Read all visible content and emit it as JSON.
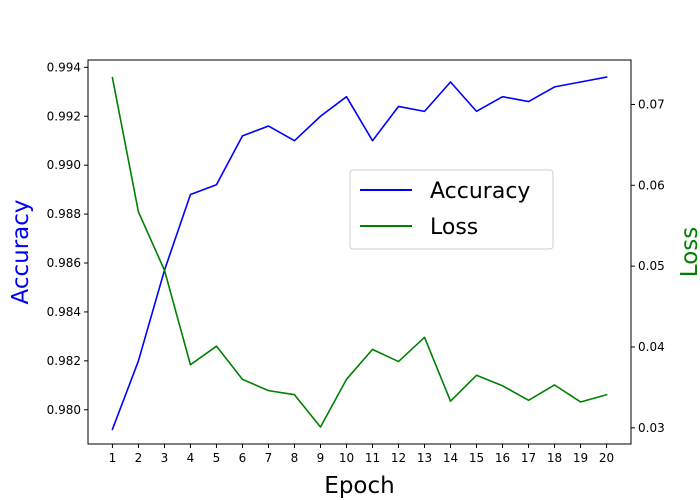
{
  "chart_data": {
    "type": "line",
    "title": "",
    "xlabel": "Epoch",
    "ylabel_left": "Accuracy",
    "ylabel_right": "Loss",
    "x": [
      1,
      2,
      3,
      4,
      5,
      6,
      7,
      8,
      9,
      10,
      11,
      12,
      13,
      14,
      15,
      16,
      17,
      18,
      19,
      20
    ],
    "x_tick_labels": [
      "1",
      "2",
      "3",
      "4",
      "5",
      "6",
      "7",
      "8",
      "9",
      "10",
      "11",
      "12",
      "13",
      "14",
      "15",
      "16",
      "17",
      "18",
      "19",
      "20"
    ],
    "ylim_left": [
      0.9786,
      0.9943
    ],
    "yticks_left": [
      0.98,
      0.982,
      0.984,
      0.986,
      0.988,
      0.99,
      0.992,
      0.994
    ],
    "ytick_labels_left": [
      "0.980",
      "0.982",
      "0.984",
      "0.986",
      "0.988",
      "0.990",
      "0.992",
      "0.994"
    ],
    "ylim_right": [
      0.028,
      0.0755
    ],
    "yticks_right": [
      0.03,
      0.04,
      0.05,
      0.06,
      0.07
    ],
    "ytick_labels_right": [
      "0.03",
      "0.04",
      "0.05",
      "0.06",
      "0.07"
    ],
    "series": [
      {
        "name": "Accuracy",
        "axis": "left",
        "color": "#0000ff",
        "values": [
          0.9792,
          0.982,
          0.9857,
          0.9888,
          0.9892,
          0.9912,
          0.9916,
          0.991,
          0.992,
          0.9928,
          0.991,
          0.9924,
          0.9922,
          0.9934,
          0.9922,
          0.9928,
          0.9926,
          0.9932,
          0.9934,
          0.9936
        ]
      },
      {
        "name": "Loss",
        "axis": "right",
        "color": "#008000",
        "values": [
          0.0733,
          0.0567,
          0.0495,
          0.0378,
          0.0401,
          0.036,
          0.0346,
          0.0341,
          0.0301,
          0.036,
          0.0397,
          0.0382,
          0.0412,
          0.0333,
          0.0365,
          0.0352,
          0.0334,
          0.0353,
          0.0332,
          0.0341
        ]
      }
    ],
    "legend": {
      "position": "center-right",
      "entries": [
        "Accuracy",
        "Loss"
      ]
    },
    "grid": false
  }
}
